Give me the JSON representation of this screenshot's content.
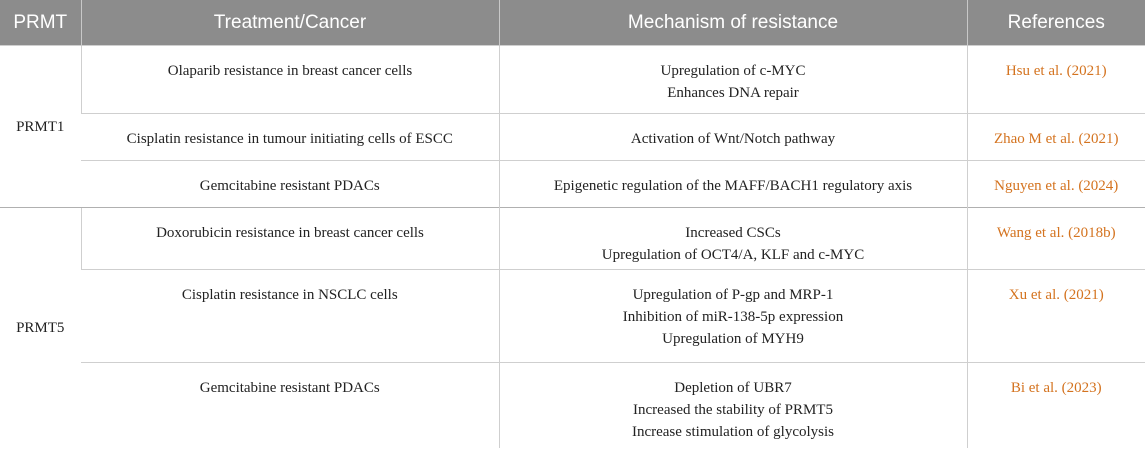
{
  "header": {
    "col1": "PRMT",
    "col2": "Treatment/Cancer",
    "col3": "Mechanism of resistance",
    "col4": "References"
  },
  "groups": [
    {
      "prmt": "PRMT1",
      "rows": [
        {
          "treatment": "Olaparib resistance in breast cancer cells",
          "mechanism": [
            "Upregulation of c-MYC",
            "Enhances DNA repair"
          ],
          "reference": "Hsu et al. (2021)"
        },
        {
          "treatment": "Cisplatin resistance in tumour initiating cells of ESCC",
          "mechanism": [
            "Activation of Wnt/Notch pathway"
          ],
          "reference": "Zhao M et al. (2021)"
        },
        {
          "treatment": "Gemcitabine resistant PDACs",
          "mechanism": [
            "Epigenetic regulation of the MAFF/BACH1 regulatory axis"
          ],
          "reference": "Nguyen et al. (2024)"
        }
      ]
    },
    {
      "prmt": "PRMT5",
      "rows": [
        {
          "treatment": "Doxorubicin resistance in breast cancer cells",
          "mechanism": [
            "Increased CSCs",
            "Upregulation of OCT4/A, KLF and c-MYC"
          ],
          "reference": "Wang et al. (2018b)"
        },
        {
          "treatment": "Cisplatin resistance in NSCLC cells",
          "mechanism": [
            "Upregulation of P-gp and MRP-1",
            "Inhibition of miR-138-5p expression",
            "Upregulation of MYH9"
          ],
          "reference": "Xu et al. (2021)"
        },
        {
          "treatment": "Gemcitabine resistant PDACs",
          "mechanism": [
            "Depletion of UBR7",
            "Increased the stability of PRMT5",
            "Increase stimulation of glycolysis"
          ],
          "reference": "Bi et al. (2023)"
        }
      ]
    }
  ],
  "colors": {
    "header_bg": "#8c8c8c",
    "header_text": "#ffffff",
    "reference_link": "#d4731f",
    "grid": "#cfcfcf"
  }
}
